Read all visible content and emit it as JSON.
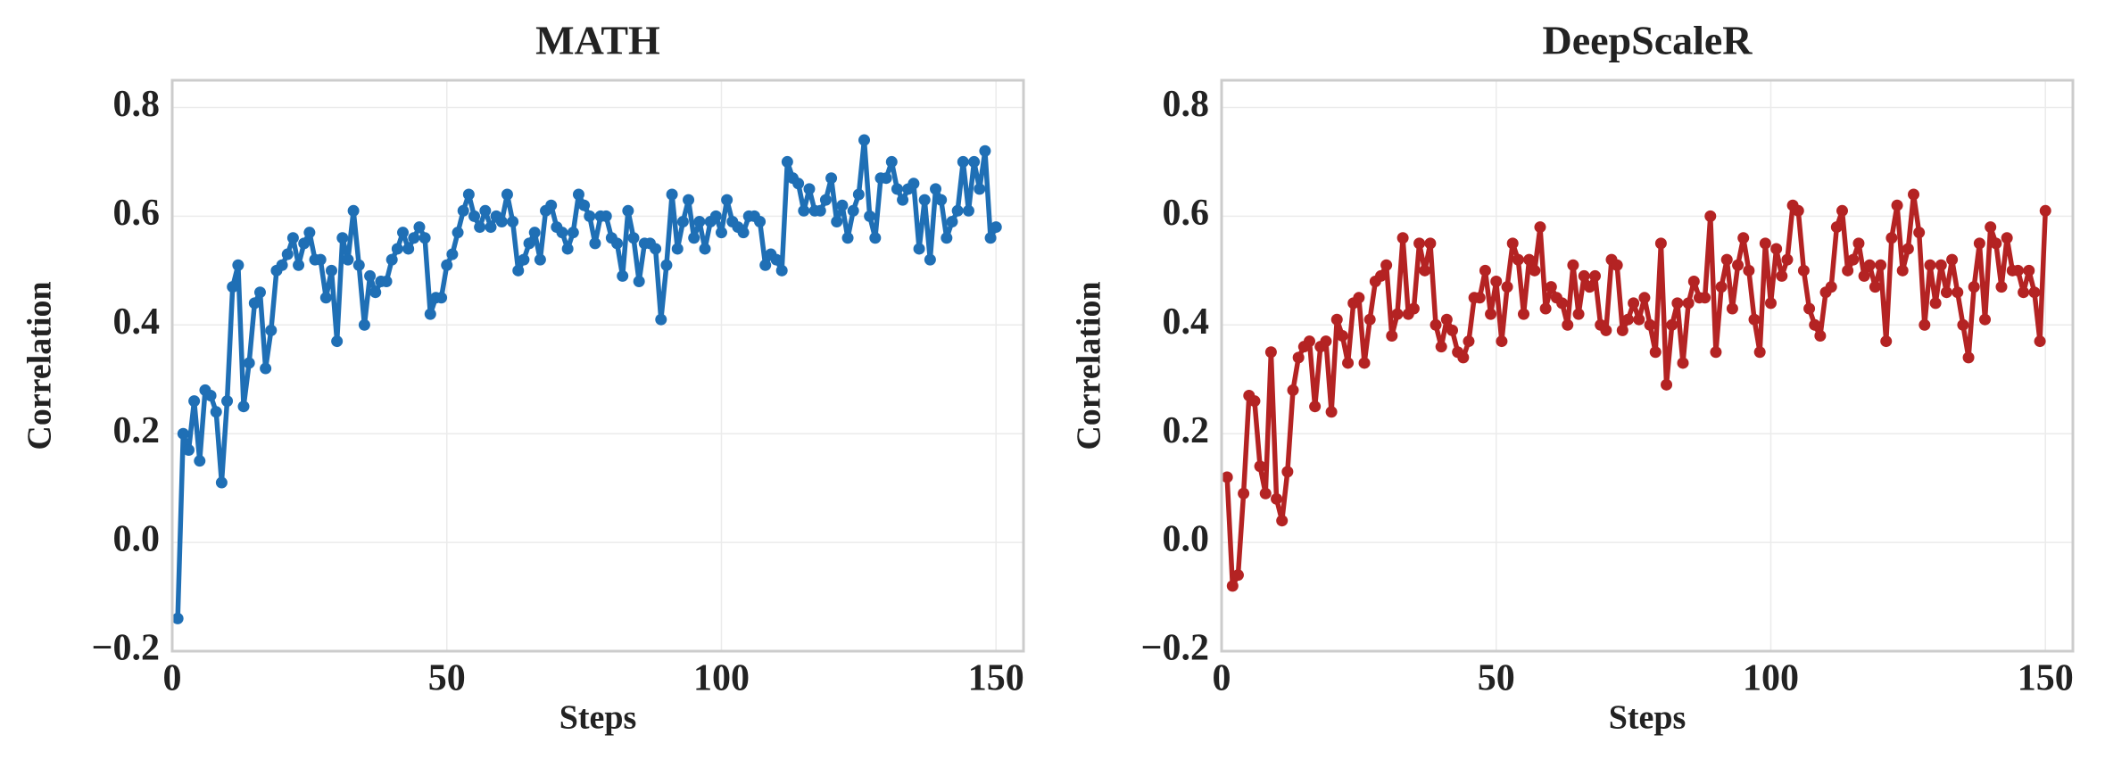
{
  "chart_data": [
    {
      "type": "line",
      "title": "MATH",
      "xlabel": "Steps",
      "ylabel": "Correlation",
      "grid": true,
      "xlim": [
        0,
        155
      ],
      "ylim": [
        -0.2,
        0.85
      ],
      "xticks": [
        0,
        50,
        100,
        150
      ],
      "yticks": [
        {
          "value": -0.2,
          "label": "−0.2"
        },
        {
          "value": 0,
          "label": "0.0"
        },
        0.2,
        0.4,
        0.6,
        0.8
      ],
      "x": [
        1,
        2,
        3,
        4,
        5,
        6,
        7,
        8,
        9,
        10,
        11,
        12,
        13,
        14,
        15,
        16,
        17,
        18,
        19,
        20,
        21,
        22,
        23,
        24,
        25,
        26,
        27,
        28,
        29,
        30,
        31,
        32,
        33,
        34,
        35,
        36,
        37,
        38,
        39,
        40,
        41,
        42,
        43,
        44,
        45,
        46,
        47,
        48,
        49,
        50,
        51,
        52,
        53,
        54,
        55,
        56,
        57,
        58,
        59,
        60,
        61,
        62,
        63,
        64,
        65,
        66,
        67,
        68,
        69,
        70,
        71,
        72,
        73,
        74,
        75,
        76,
        77,
        78,
        79,
        80,
        81,
        82,
        83,
        84,
        85,
        86,
        87,
        88,
        89,
        90,
        91,
        92,
        93,
        94,
        95,
        96,
        97,
        98,
        99,
        100,
        101,
        102,
        103,
        104,
        105,
        106,
        107,
        108,
        109,
        110,
        111,
        112,
        113,
        114,
        115,
        116,
        117,
        118,
        119,
        120,
        121,
        122,
        123,
        124,
        125,
        126,
        127,
        128,
        129,
        130,
        131,
        132,
        133,
        134,
        135,
        136,
        137,
        138,
        139,
        140,
        141,
        142,
        143,
        144,
        145,
        146,
        147,
        148,
        149,
        150
      ],
      "series": [
        {
          "name": "MATH",
          "color": "#1f6fb5",
          "values": [
            -0.14,
            0.2,
            0.17,
            0.26,
            0.15,
            0.28,
            0.27,
            0.24,
            0.11,
            0.26,
            0.47,
            0.51,
            0.25,
            0.33,
            0.44,
            0.46,
            0.32,
            0.39,
            0.5,
            0.51,
            0.53,
            0.56,
            0.51,
            0.55,
            0.57,
            0.52,
            0.52,
            0.45,
            0.5,
            0.37,
            0.56,
            0.52,
            0.61,
            0.51,
            0.4,
            0.49,
            0.46,
            0.48,
            0.48,
            0.52,
            0.54,
            0.57,
            0.54,
            0.56,
            0.58,
            0.56,
            0.42,
            0.45,
            0.45,
            0.51,
            0.53,
            0.57,
            0.61,
            0.64,
            0.6,
            0.58,
            0.61,
            0.58,
            0.6,
            0.59,
            0.64,
            0.59,
            0.5,
            0.52,
            0.55,
            0.57,
            0.52,
            0.61,
            0.62,
            0.58,
            0.57,
            0.54,
            0.57,
            0.64,
            0.62,
            0.6,
            0.55,
            0.6,
            0.6,
            0.56,
            0.55,
            0.49,
            0.61,
            0.56,
            0.48,
            0.55,
            0.55,
            0.54,
            0.41,
            0.51,
            0.64,
            0.54,
            0.59,
            0.63,
            0.56,
            0.59,
            0.54,
            0.59,
            0.6,
            0.57,
            0.63,
            0.59,
            0.58,
            0.57,
            0.6,
            0.6,
            0.59,
            0.51,
            0.53,
            0.52,
            0.5,
            0.7,
            0.67,
            0.66,
            0.61,
            0.65,
            0.61,
            0.61,
            0.63,
            0.67,
            0.59,
            0.62,
            0.56,
            0.61,
            0.64,
            0.74,
            0.6,
            0.56,
            0.67,
            0.67,
            0.7,
            0.65,
            0.63,
            0.65,
            0.66,
            0.54,
            0.63,
            0.52,
            0.65,
            0.63,
            0.56,
            0.59,
            0.61,
            0.7,
            0.61,
            0.7,
            0.65,
            0.72,
            0.56,
            0.58
          ]
        }
      ]
    },
    {
      "type": "line",
      "title": "DeepScaleR",
      "xlabel": "Steps",
      "ylabel": "Correlation",
      "grid": true,
      "xlim": [
        0,
        155
      ],
      "ylim": [
        -0.2,
        0.85
      ],
      "xticks": [
        0,
        50,
        100,
        150
      ],
      "yticks": [
        {
          "value": -0.2,
          "label": "−0.2"
        },
        {
          "value": 0,
          "label": "0.0"
        },
        0.2,
        0.4,
        0.6,
        0.8
      ],
      "x": [
        1,
        2,
        3,
        4,
        5,
        6,
        7,
        8,
        9,
        10,
        11,
        12,
        13,
        14,
        15,
        16,
        17,
        18,
        19,
        20,
        21,
        22,
        23,
        24,
        25,
        26,
        27,
        28,
        29,
        30,
        31,
        32,
        33,
        34,
        35,
        36,
        37,
        38,
        39,
        40,
        41,
        42,
        43,
        44,
        45,
        46,
        47,
        48,
        49,
        50,
        51,
        52,
        53,
        54,
        55,
        56,
        57,
        58,
        59,
        60,
        61,
        62,
        63,
        64,
        65,
        66,
        67,
        68,
        69,
        70,
        71,
        72,
        73,
        74,
        75,
        76,
        77,
        78,
        79,
        80,
        81,
        82,
        83,
        84,
        85,
        86,
        87,
        88,
        89,
        90,
        91,
        92,
        93,
        94,
        95,
        96,
        97,
        98,
        99,
        100,
        101,
        102,
        103,
        104,
        105,
        106,
        107,
        108,
        109,
        110,
        111,
        112,
        113,
        114,
        115,
        116,
        117,
        118,
        119,
        120,
        121,
        122,
        123,
        124,
        125,
        126,
        127,
        128,
        129,
        130,
        131,
        132,
        133,
        134,
        135,
        136,
        137,
        138,
        139,
        140,
        141,
        142,
        143,
        144,
        145,
        146,
        147,
        148,
        149,
        150
      ],
      "series": [
        {
          "name": "DeepScaleR",
          "color": "#b42323",
          "values": [
            0.12,
            -0.08,
            -0.06,
            0.09,
            0.27,
            0.26,
            0.14,
            0.09,
            0.35,
            0.08,
            0.04,
            0.13,
            0.28,
            0.34,
            0.36,
            0.37,
            0.25,
            0.36,
            0.37,
            0.24,
            0.41,
            0.38,
            0.33,
            0.44,
            0.45,
            0.33,
            0.41,
            0.48,
            0.49,
            0.51,
            0.38,
            0.42,
            0.56,
            0.42,
            0.43,
            0.55,
            0.5,
            0.55,
            0.4,
            0.36,
            0.41,
            0.39,
            0.35,
            0.34,
            0.37,
            0.45,
            0.45,
            0.5,
            0.42,
            0.48,
            0.37,
            0.47,
            0.55,
            0.52,
            0.42,
            0.52,
            0.5,
            0.58,
            0.43,
            0.47,
            0.45,
            0.44,
            0.4,
            0.51,
            0.42,
            0.49,
            0.47,
            0.49,
            0.4,
            0.39,
            0.52,
            0.51,
            0.39,
            0.41,
            0.44,
            0.41,
            0.45,
            0.4,
            0.35,
            0.55,
            0.29,
            0.4,
            0.44,
            0.33,
            0.44,
            0.48,
            0.45,
            0.45,
            0.6,
            0.35,
            0.47,
            0.52,
            0.43,
            0.51,
            0.56,
            0.5,
            0.41,
            0.35,
            0.55,
            0.44,
            0.54,
            0.49,
            0.52,
            0.62,
            0.61,
            0.5,
            0.43,
            0.4,
            0.38,
            0.46,
            0.47,
            0.58,
            0.61,
            0.5,
            0.52,
            0.55,
            0.49,
            0.51,
            0.47,
            0.51,
            0.37,
            0.56,
            0.62,
            0.5,
            0.54,
            0.64,
            0.57,
            0.4,
            0.51,
            0.44,
            0.51,
            0.46,
            0.52,
            0.46,
            0.4,
            0.34,
            0.47,
            0.55,
            0.41,
            0.58,
            0.55,
            0.47,
            0.56,
            0.5,
            0.5,
            0.46,
            0.5,
            0.46,
            0.37,
            0.61
          ]
        }
      ]
    }
  ]
}
